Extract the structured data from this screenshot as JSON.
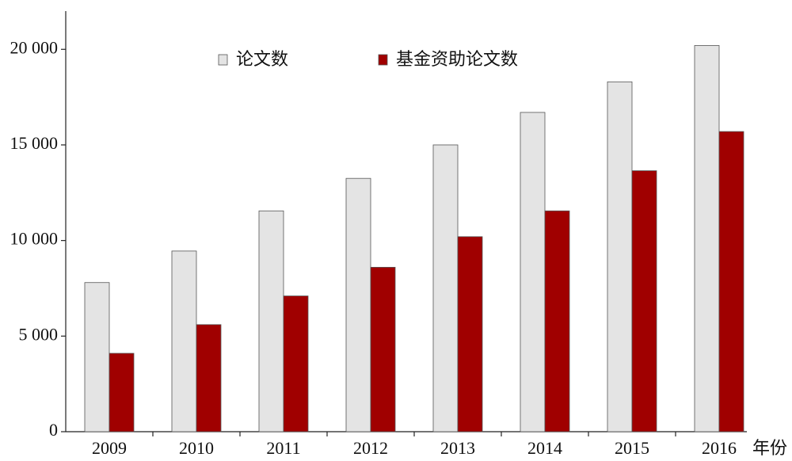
{
  "chart_data": {
    "type": "bar",
    "categories": [
      "2009",
      "2010",
      "2011",
      "2012",
      "2013",
      "2014",
      "2015",
      "2016"
    ],
    "x_label": "年份",
    "series": [
      {
        "name": "论文数",
        "color": "#e4e4e4",
        "values": [
          7800,
          9450,
          11550,
          13250,
          15000,
          16700,
          18300,
          20200
        ]
      },
      {
        "name": "基金资助论文数",
        "color": "#a00000",
        "values": [
          4100,
          5600,
          7100,
          8600,
          10200,
          11550,
          13650,
          15700
        ]
      }
    ],
    "ylim": [
      0,
      22000
    ],
    "yticks": [
      0,
      {
        "value": 5000,
        "label": "5 000"
      },
      {
        "value": 10000,
        "label": "10 000"
      },
      {
        "value": 15000,
        "label": "15 000"
      },
      {
        "value": 20000,
        "label": "20 000"
      }
    ],
    "grid": false,
    "legend": "top"
  }
}
